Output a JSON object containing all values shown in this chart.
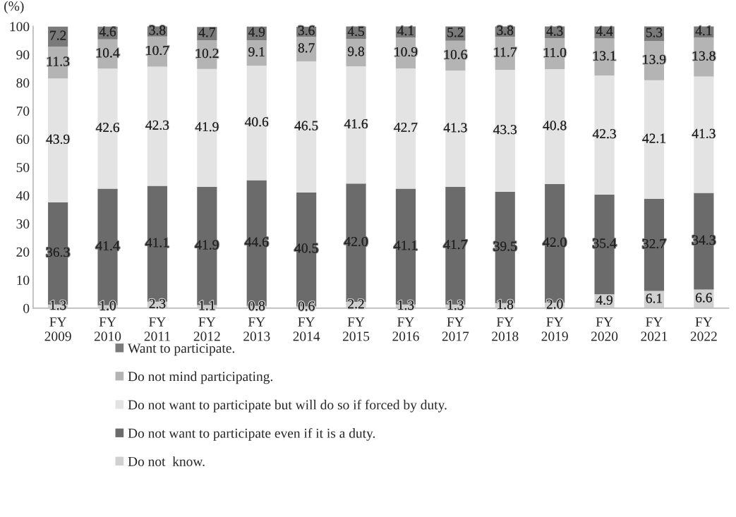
{
  "chart_data": {
    "type": "bar",
    "stacked": true,
    "ylabel": "(%)",
    "categories": [
      "FY\n2009",
      "FY\n2010",
      "FY\n2011",
      "FY\n2012",
      "FY\n2013",
      "FY\n2014",
      "FY\n2015",
      "FY\n2016",
      "FY\n2017",
      "FY\n2018",
      "FY\n2019",
      "FY\n2020",
      "FY\n2021",
      "FY\n2022"
    ],
    "series": [
      {
        "name": "Do not  know.",
        "color": "#d0d0d0",
        "values": [
          1.3,
          1.0,
          2.3,
          1.1,
          0.8,
          0.6,
          2.2,
          1.3,
          1.3,
          1.8,
          2.0,
          4.9,
          6.1,
          6.6
        ],
        "value_labels": [
          "1.3",
          "1.0",
          "2.3",
          "1.1",
          "0.8",
          "0.6",
          "2.2",
          "1.3",
          "1.3",
          "1.8",
          "2.0",
          "4.9",
          "6.1",
          "6.6"
        ]
      },
      {
        "name": "Do not want to participate even if it is a duty.",
        "color": "#6b6b6b",
        "values": [
          36.3,
          41.4,
          41.1,
          41.9,
          44.6,
          40.5,
          42.0,
          41.1,
          41.7,
          39.5,
          42.0,
          35.4,
          32.7,
          34.3
        ],
        "value_labels": [
          "36.3",
          "41.4",
          "41.1",
          "41.9",
          "44.6",
          "40.5",
          "42.0",
          "41.1",
          "41.7",
          "39.5",
          "42.0",
          "35.4",
          "32.7",
          "34.3"
        ]
      },
      {
        "name": "Do not want to participate but will do so if forced by duty.",
        "color": "#e3e3e3",
        "values": [
          43.9,
          42.6,
          42.3,
          41.9,
          40.6,
          46.5,
          41.6,
          42.7,
          41.3,
          43.3,
          40.8,
          42.3,
          42.1,
          41.3
        ],
        "value_labels": [
          "43.9",
          "42.6",
          "42.3",
          "41.9",
          "40.6",
          "46.5",
          "41.6",
          "42.7",
          "41.3",
          "43.3",
          "40.8",
          "42.3",
          "42.1",
          "41.3"
        ]
      },
      {
        "name": "Do not mind participating.",
        "color": "#b4b4b4",
        "values": [
          11.3,
          10.4,
          10.7,
          10.2,
          9.1,
          8.7,
          9.8,
          10.9,
          10.6,
          11.7,
          11.0,
          13.1,
          13.9,
          13.8
        ],
        "value_labels": [
          "11.3",
          "10.4",
          "10.7",
          "10.2",
          "9.1",
          "8.7",
          "9.8",
          "10.9",
          "10.6",
          "11.7",
          "11.0",
          "13.1",
          "13.9",
          "13.8"
        ]
      },
      {
        "name": "Want to participate.",
        "color": "#7a7a7a",
        "values": [
          7.2,
          4.6,
          3.8,
          4.7,
          4.9,
          3.6,
          4.5,
          4.1,
          5.2,
          3.8,
          4.3,
          4.4,
          5.3,
          4.1
        ],
        "value_labels": [
          "7.2",
          "4.6",
          "3.8",
          "4.7",
          "4.9",
          "3.6",
          "4.5",
          "4.1",
          "5.2",
          "3.8",
          "4.3",
          "4.4",
          "5.3",
          "4.1"
        ]
      }
    ],
    "ylim": [
      0,
      100
    ],
    "yticks": [
      0,
      10,
      20,
      30,
      40,
      50,
      60,
      70,
      80,
      90,
      100
    ],
    "grid": false,
    "legend": "bottom"
  }
}
